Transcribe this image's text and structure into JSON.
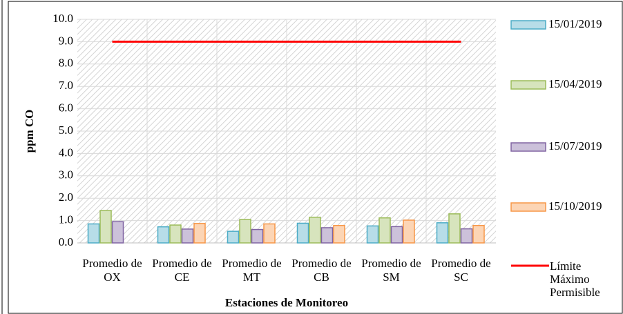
{
  "chart_data": {
    "type": "bar",
    "xlabel": "Estaciones de Monitoreo",
    "ylabel": "ppm CO",
    "categories": [
      "Promedio de OX",
      "Promedio de CE",
      "Promedio de MT",
      "Promedio de CB",
      "Promedio de SM",
      "Promedio de SC"
    ],
    "series": [
      {
        "name": "15/01/2019",
        "color": "#b7dde8",
        "edgecolor": "#4bacc6",
        "values": [
          0.85,
          0.72,
          0.52,
          0.88,
          0.76,
          0.9
        ]
      },
      {
        "name": "15/04/2019",
        "color": "#d7e4bd",
        "edgecolor": "#9bbb59",
        "values": [
          1.45,
          0.8,
          1.05,
          1.15,
          1.12,
          1.3
        ]
      },
      {
        "name": "15/07/2019",
        "color": "#ccc1da",
        "edgecolor": "#8064a2",
        "values": [
          0.95,
          0.62,
          0.6,
          0.68,
          0.73,
          0.63
        ]
      },
      {
        "name": "15/10/2019",
        "color": "#fcd5b5",
        "edgecolor": "#f79646",
        "values": [
          null,
          0.87,
          0.85,
          0.78,
          1.02,
          0.78
        ]
      },
      {
        "name": "Límite Máximo Permisible",
        "type": "line",
        "color": "#ff0000",
        "values": [
          9,
          9,
          9,
          9,
          9,
          9
        ]
      }
    ],
    "ylim": [
      0,
      10
    ],
    "yticks": [
      {
        "value": 0,
        "label": "0.0"
      },
      {
        "value": 1,
        "label": "1.0"
      },
      {
        "value": 2,
        "label": "2.0"
      },
      {
        "value": 3,
        "label": "3.0"
      },
      {
        "value": 4,
        "label": "4.0"
      },
      {
        "value": 5,
        "label": "5.0"
      },
      {
        "value": 6,
        "label": "6.0"
      },
      {
        "value": 7,
        "label": "7.0"
      },
      {
        "value": 8,
        "label": "8.0"
      },
      {
        "value": 9,
        "label": "9.0"
      },
      {
        "value": 10,
        "label": "10.0"
      }
    ],
    "grid": true,
    "legend": "right"
  }
}
